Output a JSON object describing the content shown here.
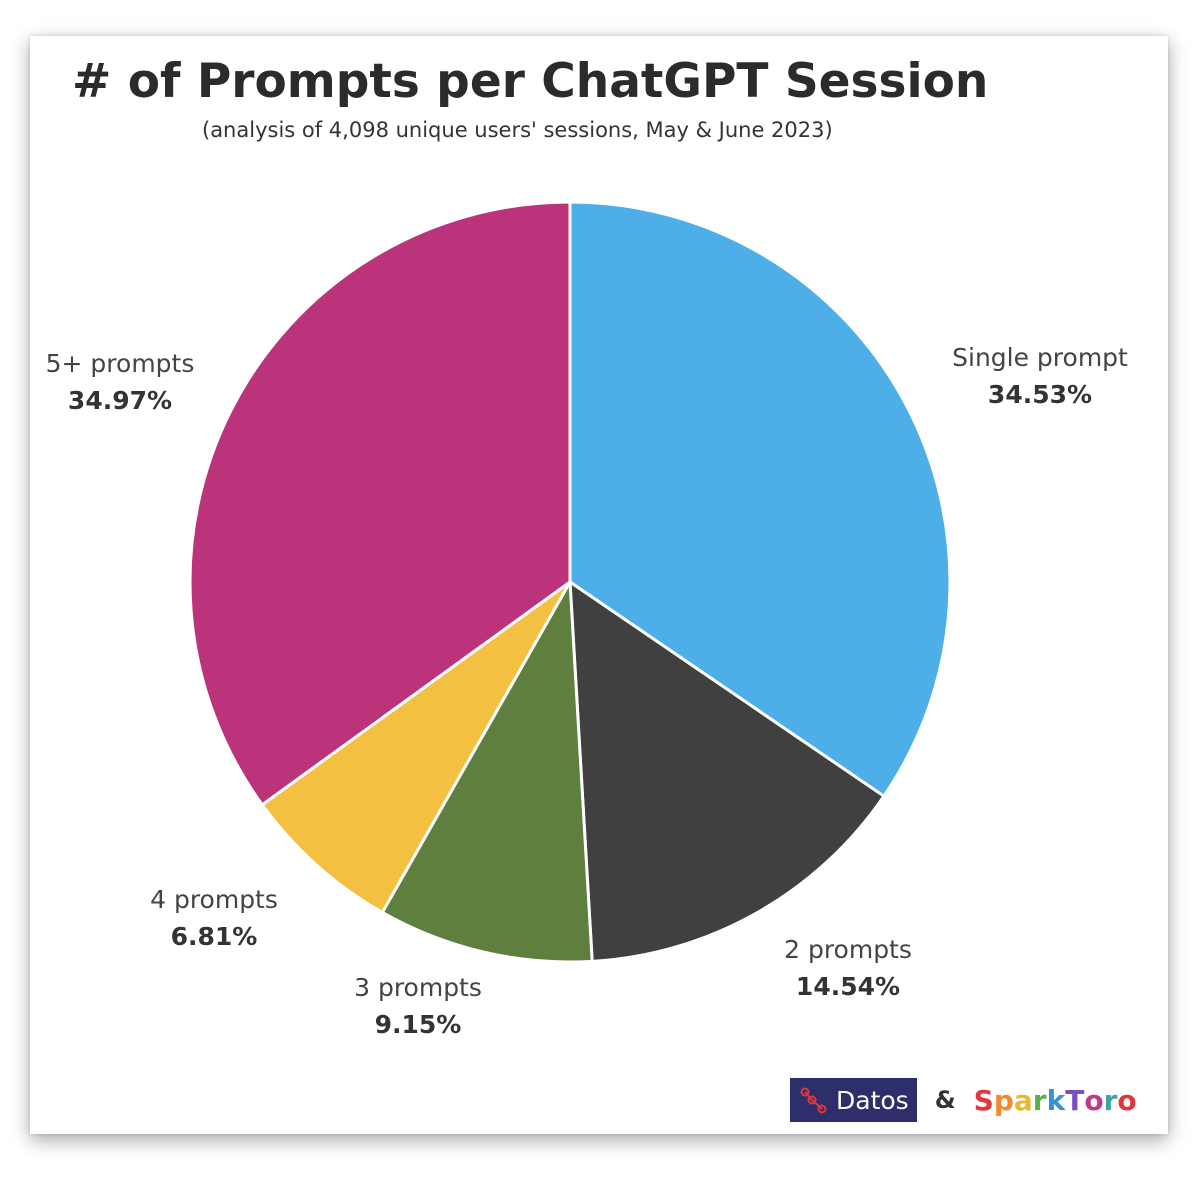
{
  "title": "# of Prompts per ChatGPT Session",
  "subtitle": "(analysis of 4,098 unique users' sessions, May & June 2023)",
  "chart_data": {
    "type": "pie",
    "title": "# of Prompts per ChatGPT Session",
    "subtitle": "(analysis of 4,098 unique users' sessions, May & June 2023)",
    "start": "12 o'clock",
    "direction": "clockwise",
    "slices": [
      {
        "label": "Single prompt",
        "value": 34.53,
        "display": "34.53%",
        "color": "#4daee8"
      },
      {
        "label": "2 prompts",
        "value": 14.54,
        "display": "14.54%",
        "color": "#404040"
      },
      {
        "label": "3 prompts",
        "value": 9.15,
        "display": "9.15%",
        "color": "#5e7f3d"
      },
      {
        "label": "4 prompts",
        "value": 6.81,
        "display": "6.81%",
        "color": "#f4c042"
      },
      {
        "label": "5+ prompts",
        "value": 34.97,
        "display": "34.97%",
        "color": "#bb347b"
      }
    ]
  },
  "logos": {
    "datos_text": "Datos",
    "ampersand": "&",
    "sparktoro_text": "SparkToro",
    "sparktoro_colors": [
      "#e2363e",
      "#f08a2c",
      "#e8b92d",
      "#5fae4d",
      "#3a8fd6",
      "#7a4fc4",
      "#c4368f",
      "#3aa7a1",
      "#e2363e"
    ]
  }
}
